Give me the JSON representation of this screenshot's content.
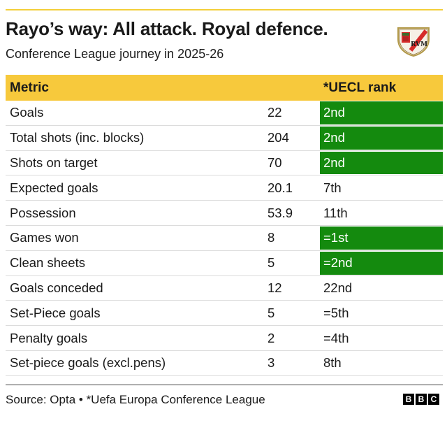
{
  "title": "Rayo’s way: All attack. Royal defence.",
  "subtitle": "Conference League journey in 2025-26",
  "crest": {
    "icon": "rayo-vallecano-crest-icon",
    "letters": "RVM"
  },
  "table": {
    "headers": [
      "Metric",
      "",
      "*UECL rank"
    ],
    "highlight_color": "#148a0e",
    "header_color": "#f7c93c"
  },
  "chart_data": {
    "type": "table",
    "columns": [
      "Metric",
      "",
      "*UECL rank"
    ],
    "rows": [
      {
        "metric": "Goals",
        "value": "22",
        "rank": "2nd",
        "highlight": true
      },
      {
        "metric": "Total shots (inc. blocks)",
        "value": "204",
        "rank": "2nd",
        "highlight": true
      },
      {
        "metric": "Shots on target",
        "value": "70",
        "rank": "2nd",
        "highlight": true
      },
      {
        "metric": "Expected goals",
        "value": "20.1",
        "rank": "7th",
        "highlight": false
      },
      {
        "metric": "Possession",
        "value": "53.9",
        "rank": "11th",
        "highlight": false
      },
      {
        "metric": "Games won",
        "value": "8",
        "rank": "=1st",
        "highlight": true
      },
      {
        "metric": "Clean sheets",
        "value": "5",
        "rank": "=2nd",
        "highlight": true
      },
      {
        "metric": "Goals conceded",
        "value": "12",
        "rank": "22nd",
        "highlight": false
      },
      {
        "metric": "Set-Piece goals",
        "value": "5",
        "rank": "=5th",
        "highlight": false
      },
      {
        "metric": "Penalty goals",
        "value": "2",
        "rank": "=4th",
        "highlight": false
      },
      {
        "metric": "Set-piece goals (excl.pens)",
        "value": "3",
        "rank": "8th",
        "highlight": false
      }
    ]
  },
  "footer": {
    "source": "Source: Opta • *Uefa Europa Conference League",
    "logo": [
      "B",
      "B",
      "C"
    ]
  }
}
